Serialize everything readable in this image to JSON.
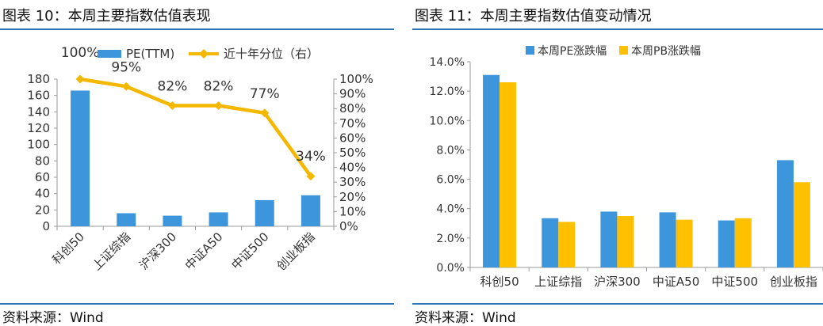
{
  "left": {
    "title": "图表 10：本周主要指数估值表现",
    "source": "资料来源：Wind"
  },
  "right": {
    "title": "图表 11：本周主要指数估值变动情况",
    "source": "资料来源：Wind"
  },
  "colors": {
    "blue": "#3d96db",
    "orange": "#ffc000",
    "line": "#f5b800",
    "rule": "#2e75b6"
  },
  "chart_data": [
    {
      "type": "bar",
      "categories": [
        "科创50",
        "上证综指",
        "沪深300",
        "中证A50",
        "中证500",
        "创业板指"
      ],
      "series": [
        {
          "name": "PE(TTM)",
          "type": "bar",
          "axis": "left",
          "values": [
            166,
            16,
            13,
            17,
            32,
            38
          ]
        },
        {
          "name": "近十年分位（右）",
          "type": "line",
          "axis": "right",
          "values": [
            100,
            95,
            82,
            82,
            77,
            34
          ]
        }
      ],
      "data_labels": [
        "100%",
        "95%",
        "82%",
        "82%",
        "77%",
        "34%"
      ],
      "yticks": [
        "0",
        "20",
        "40",
        "60",
        "80",
        "100",
        "120",
        "140",
        "160",
        "180"
      ],
      "y2ticks": [
        "0%",
        "10%",
        "20%",
        "30%",
        "40%",
        "50%",
        "60%",
        "70%",
        "80%",
        "90%",
        "100%"
      ],
      "ylim": [
        0,
        180
      ],
      "y2lim": [
        0,
        100
      ],
      "legend": "top-center"
    },
    {
      "type": "bar",
      "categories": [
        "科创50",
        "上证综指",
        "沪深300",
        "中证A50",
        "中证500",
        "创业板指"
      ],
      "series": [
        {
          "name": "本周PE涨跌幅",
          "values": [
            13.1,
            3.35,
            3.8,
            3.75,
            3.2,
            7.3
          ]
        },
        {
          "name": "本周PB涨跌幅",
          "values": [
            12.6,
            3.1,
            3.5,
            3.25,
            3.35,
            5.8
          ]
        }
      ],
      "yticks": [
        "0.0%",
        "2.0%",
        "4.0%",
        "6.0%",
        "8.0%",
        "10.0%",
        "12.0%",
        "14.0%"
      ],
      "ylim": [
        0,
        14
      ],
      "grid": false,
      "legend": "top-center"
    }
  ]
}
